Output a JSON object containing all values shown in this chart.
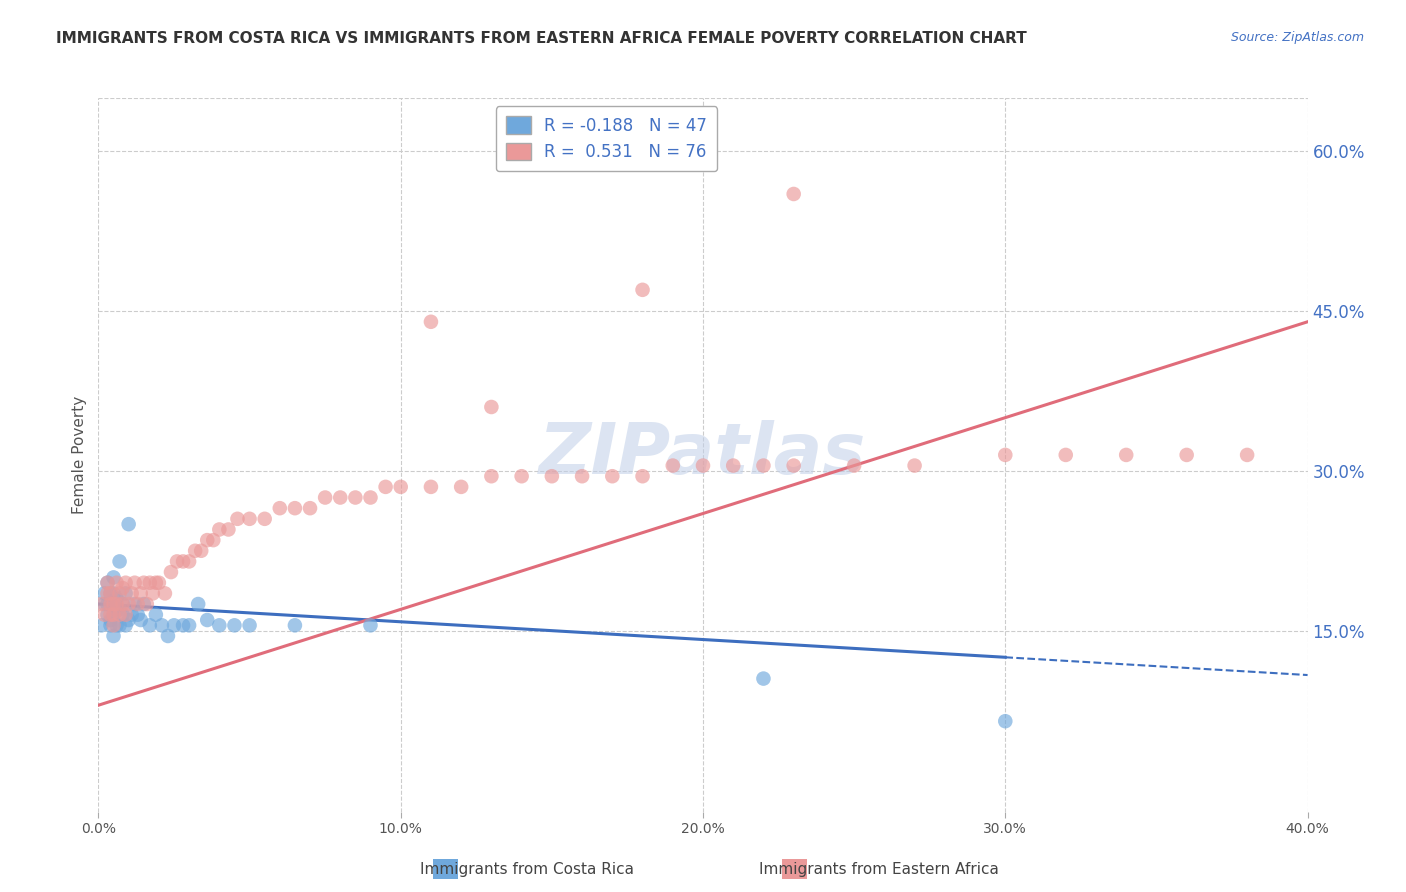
{
  "title": "IMMIGRANTS FROM COSTA RICA VS IMMIGRANTS FROM EASTERN AFRICA FEMALE POVERTY CORRELATION CHART",
  "source": "Source: ZipAtlas.com",
  "xlabel": "",
  "ylabel": "Female Poverty",
  "legend_label1": "Immigrants from Costa Rica",
  "legend_label2": "Immigrants from Eastern Africa",
  "r1": -0.188,
  "n1": 47,
  "r2": 0.531,
  "n2": 76,
  "color1": "#6fa8dc",
  "color2": "#ea9999",
  "trendline1_color": "#3d6ebf",
  "trendline2_color": "#e06c7a",
  "watermark": "ZIPatlas",
  "xlim": [
    0.0,
    0.4
  ],
  "ylim": [
    -0.02,
    0.65
  ],
  "xticks": [
    0.0,
    0.1,
    0.2,
    0.3,
    0.4
  ],
  "xtick_labels": [
    "0.0%",
    "10.0%",
    "20.0%",
    "30.0%",
    "40.0%"
  ],
  "yticks_right": [
    0.15,
    0.3,
    0.45,
    0.6
  ],
  "ytick_right_labels": [
    "15.0%",
    "30.0%",
    "45.0%",
    "60.0%"
  ],
  "trendline1_x0": 0.0,
  "trendline1_y0": 0.175,
  "trendline1_x1": 0.3,
  "trendline1_y1": 0.125,
  "trendline1_dash_x0": 0.3,
  "trendline1_dash_x1": 0.4,
  "trendline2_x0": 0.0,
  "trendline2_y0": 0.08,
  "trendline2_x1": 0.4,
  "trendline2_y1": 0.44,
  "background_color": "#ffffff",
  "title_color": "#333333",
  "axis_label_color": "#555555",
  "right_axis_color": "#4472c4",
  "grid_color": "#cccccc",
  "title_fontsize": 11,
  "source_fontsize": 9,
  "watermark_color": "#c0cfe8",
  "watermark_fontsize": 52,
  "scatter1_x": [
    0.001,
    0.002,
    0.002,
    0.003,
    0.003,
    0.003,
    0.004,
    0.004,
    0.004,
    0.004,
    0.005,
    0.005,
    0.005,
    0.005,
    0.006,
    0.006,
    0.006,
    0.007,
    0.007,
    0.007,
    0.008,
    0.008,
    0.009,
    0.009,
    0.01,
    0.01,
    0.011,
    0.012,
    0.013,
    0.014,
    0.015,
    0.017,
    0.019,
    0.021,
    0.023,
    0.025,
    0.028,
    0.03,
    0.033,
    0.036,
    0.04,
    0.045,
    0.05,
    0.065,
    0.09,
    0.22,
    0.3
  ],
  "scatter1_y": [
    0.155,
    0.175,
    0.185,
    0.165,
    0.175,
    0.195,
    0.155,
    0.175,
    0.185,
    0.16,
    0.145,
    0.165,
    0.185,
    0.2,
    0.155,
    0.17,
    0.18,
    0.155,
    0.17,
    0.215,
    0.165,
    0.175,
    0.155,
    0.185,
    0.16,
    0.25,
    0.165,
    0.175,
    0.165,
    0.16,
    0.175,
    0.155,
    0.165,
    0.155,
    0.145,
    0.155,
    0.155,
    0.155,
    0.175,
    0.16,
    0.155,
    0.155,
    0.155,
    0.155,
    0.155,
    0.105,
    0.065
  ],
  "scatter2_x": [
    0.001,
    0.002,
    0.003,
    0.003,
    0.004,
    0.004,
    0.004,
    0.005,
    0.005,
    0.005,
    0.006,
    0.006,
    0.007,
    0.007,
    0.008,
    0.008,
    0.009,
    0.009,
    0.01,
    0.011,
    0.012,
    0.013,
    0.014,
    0.015,
    0.016,
    0.017,
    0.018,
    0.019,
    0.02,
    0.022,
    0.024,
    0.026,
    0.028,
    0.03,
    0.032,
    0.034,
    0.036,
    0.038,
    0.04,
    0.043,
    0.046,
    0.05,
    0.055,
    0.06,
    0.065,
    0.07,
    0.075,
    0.08,
    0.085,
    0.09,
    0.095,
    0.1,
    0.11,
    0.12,
    0.13,
    0.14,
    0.15,
    0.16,
    0.17,
    0.18,
    0.19,
    0.2,
    0.21,
    0.22,
    0.23,
    0.25,
    0.27,
    0.3,
    0.32,
    0.34,
    0.36,
    0.38,
    0.11,
    0.13,
    0.18,
    0.23
  ],
  "scatter2_y": [
    0.175,
    0.165,
    0.185,
    0.195,
    0.165,
    0.175,
    0.185,
    0.155,
    0.165,
    0.175,
    0.175,
    0.195,
    0.165,
    0.185,
    0.175,
    0.19,
    0.165,
    0.195,
    0.175,
    0.185,
    0.195,
    0.175,
    0.185,
    0.195,
    0.175,
    0.195,
    0.185,
    0.195,
    0.195,
    0.185,
    0.205,
    0.215,
    0.215,
    0.215,
    0.225,
    0.225,
    0.235,
    0.235,
    0.245,
    0.245,
    0.255,
    0.255,
    0.255,
    0.265,
    0.265,
    0.265,
    0.275,
    0.275,
    0.275,
    0.275,
    0.285,
    0.285,
    0.285,
    0.285,
    0.295,
    0.295,
    0.295,
    0.295,
    0.295,
    0.295,
    0.305,
    0.305,
    0.305,
    0.305,
    0.305,
    0.305,
    0.305,
    0.315,
    0.315,
    0.315,
    0.315,
    0.315,
    0.44,
    0.36,
    0.47,
    0.56
  ]
}
